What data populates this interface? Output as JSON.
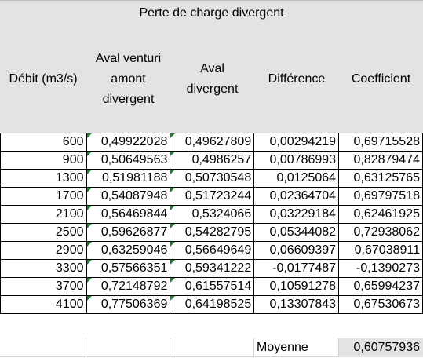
{
  "title": "Perte de charge divergent",
  "headers": [
    [
      "Débit (m3/s)"
    ],
    [
      "Aval venturi",
      "amont",
      "divergent"
    ],
    [
      "Aval",
      "divergent"
    ],
    [
      "Différence"
    ],
    [
      "Coefficient"
    ]
  ],
  "rows": [
    [
      "600",
      "0,49922028",
      "0,49627809",
      "0,00294219",
      "0,69715528"
    ],
    [
      "900",
      "0,50649563",
      "0,4986257",
      "0,00786993",
      "0,82879474"
    ],
    [
      "1300",
      "0,51981188",
      "0,50730548",
      "0,0125064",
      "0,63125765"
    ],
    [
      "1700",
      "0,54087948",
      "0,51723244",
      "0,02364704",
      "0,69797518"
    ],
    [
      "2100",
      "0,56469844",
      "0,5324066",
      "0,03229184",
      "0,62461925"
    ],
    [
      "2500",
      "0,59626877",
      "0,54282795",
      "0,05344082",
      "0,72938062"
    ],
    [
      "2900",
      "0,63259046",
      "0,56649649",
      "0,06609397",
      "0,67038911"
    ],
    [
      "3300",
      "0,57566351",
      "0,59341222",
      "-0,0177487",
      "-0,1390273"
    ],
    [
      "3700",
      "0,72148792",
      "0,61557514",
      "0,10591278",
      "0,65994237"
    ],
    [
      "4100",
      "0,77506369",
      "0,64198525",
      "0,13307843",
      "0,67530673"
    ]
  ],
  "footer": {
    "label": "Moyenne",
    "value": "0,60757936"
  },
  "colors": {
    "header_bg": "#e3e3e3",
    "flag": "#1e7f34"
  }
}
